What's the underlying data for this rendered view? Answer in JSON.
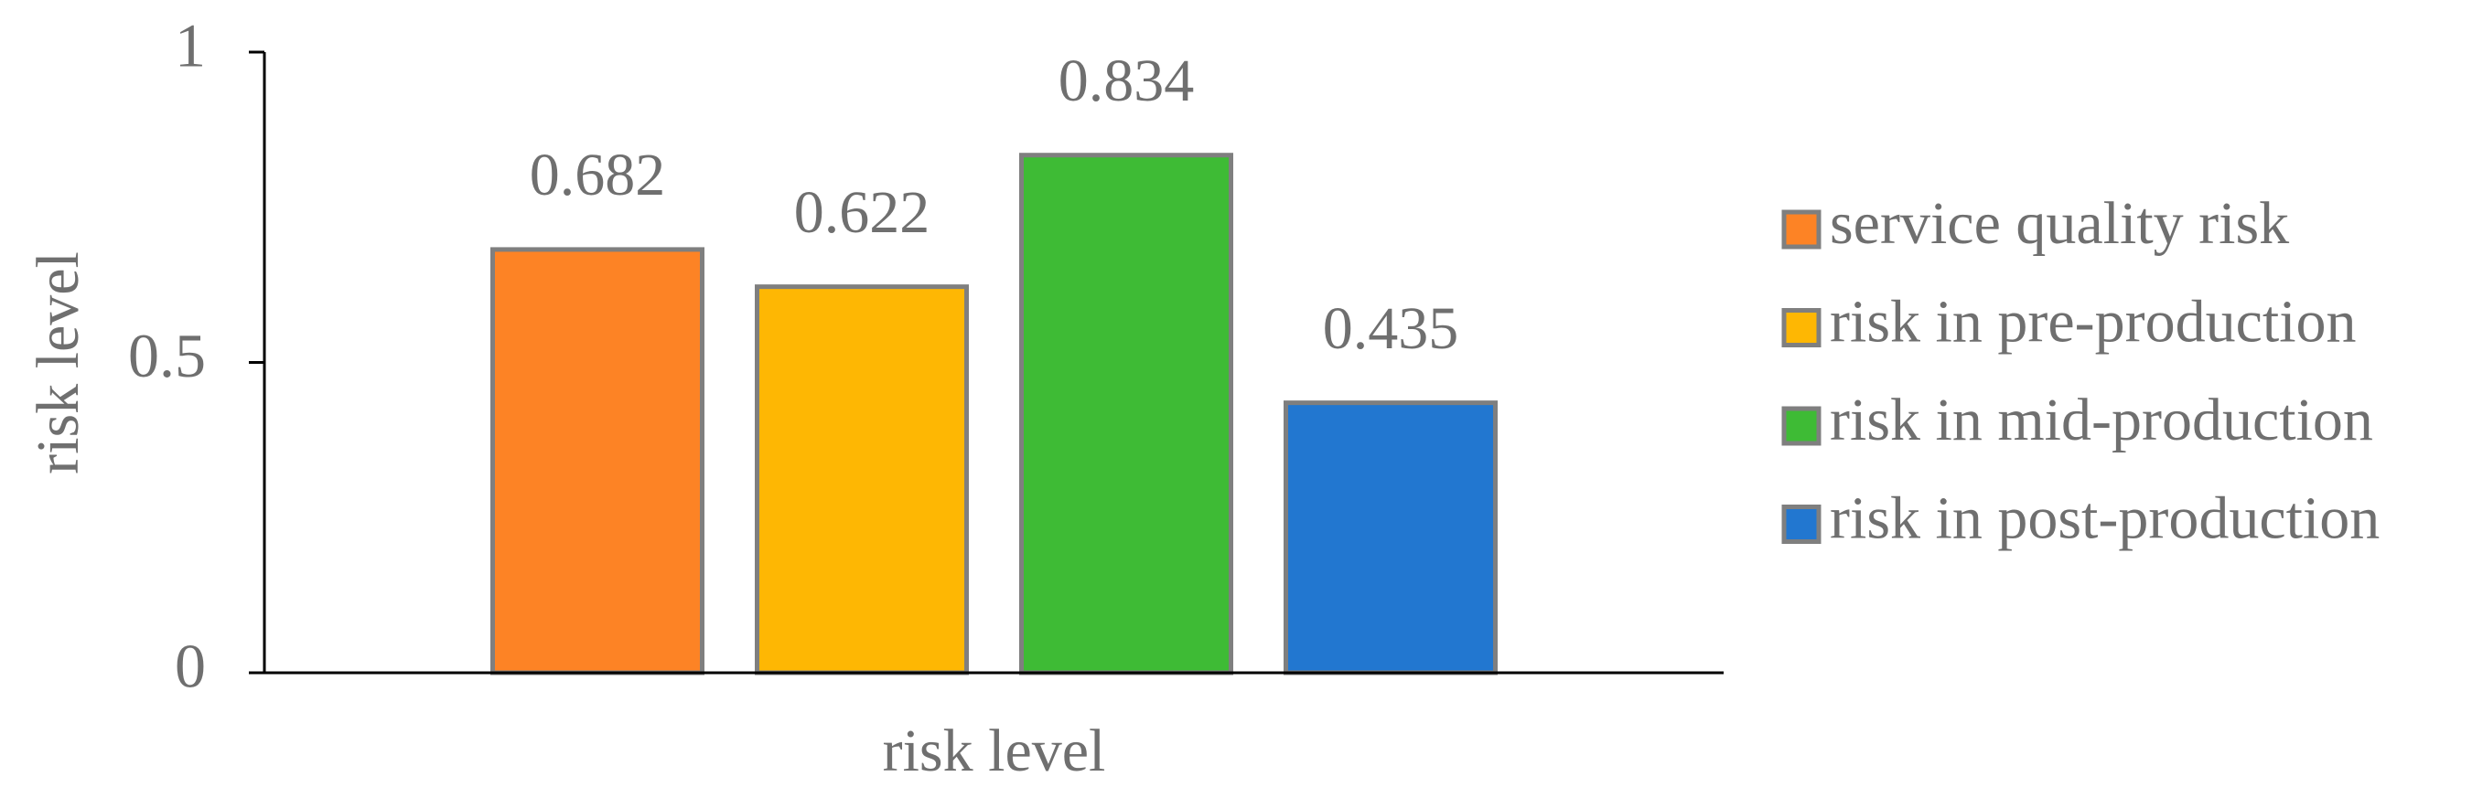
{
  "chart_data": {
    "type": "bar",
    "categories": [
      "risk level"
    ],
    "ylabel": "risk level",
    "series": [
      {
        "name": "service quality risk",
        "color": "#fd8325",
        "values": [
          0.682
        ]
      },
      {
        "name": "risk in pre-production",
        "color": "#feb703",
        "values": [
          0.622
        ]
      },
      {
        "name": "risk in mid-production",
        "color": "#3ebb35",
        "values": [
          0.834
        ]
      },
      {
        "name": "risk in post-production",
        "color": "#2277d0",
        "values": [
          0.435
        ]
      }
    ],
    "ylim": [
      0,
      1
    ],
    "yticks": [
      0,
      0.5,
      1
    ],
    "legend": "right",
    "grid": false
  }
}
